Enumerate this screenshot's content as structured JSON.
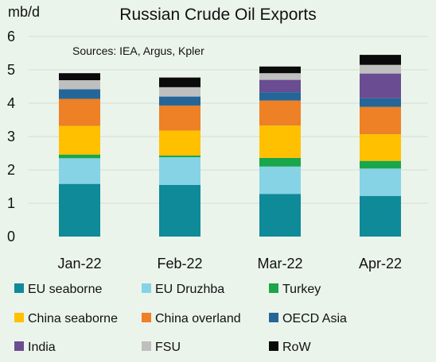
{
  "chart_data": {
    "type": "bar",
    "stacked": true,
    "title": "Russian Crude Oil Exports",
    "ylabel": "mb/d",
    "source_note": "Sources: IEA, Argus, Kpler",
    "ylim": [
      0,
      6
    ],
    "yticks": [
      0,
      1,
      2,
      3,
      4,
      5,
      6
    ],
    "categories": [
      "Jan-22",
      "Feb-22",
      "Mar-22",
      "Apr-22"
    ],
    "grid": true,
    "legend_position": "bottom",
    "series": [
      {
        "name": "EU seaborne",
        "color": "#0e8a99",
        "values": [
          1.58,
          1.55,
          1.28,
          1.22
        ]
      },
      {
        "name": "EU Druzhba",
        "color": "#86d3e6",
        "values": [
          0.77,
          0.83,
          0.82,
          0.82
        ]
      },
      {
        "name": "Turkey",
        "color": "#1aa64a",
        "values": [
          0.11,
          0.05,
          0.26,
          0.23
        ]
      },
      {
        "name": "China seaborne",
        "color": "#ffc000",
        "values": [
          0.86,
          0.75,
          0.97,
          0.8
        ]
      },
      {
        "name": "China overland",
        "color": "#ee8026",
        "values": [
          0.81,
          0.75,
          0.75,
          0.82
        ]
      },
      {
        "name": "OECD Asia",
        "color": "#256699",
        "values": [
          0.29,
          0.27,
          0.25,
          0.26
        ]
      },
      {
        "name": "India",
        "color": "#6a4c93",
        "values": [
          0.0,
          0.0,
          0.37,
          0.74
        ]
      },
      {
        "name": "FSU",
        "color": "#bfbfbf",
        "values": [
          0.27,
          0.28,
          0.2,
          0.26
        ]
      },
      {
        "name": "RoW",
        "color": "#0a0a0a",
        "values": [
          0.21,
          0.29,
          0.2,
          0.3
        ]
      }
    ]
  }
}
